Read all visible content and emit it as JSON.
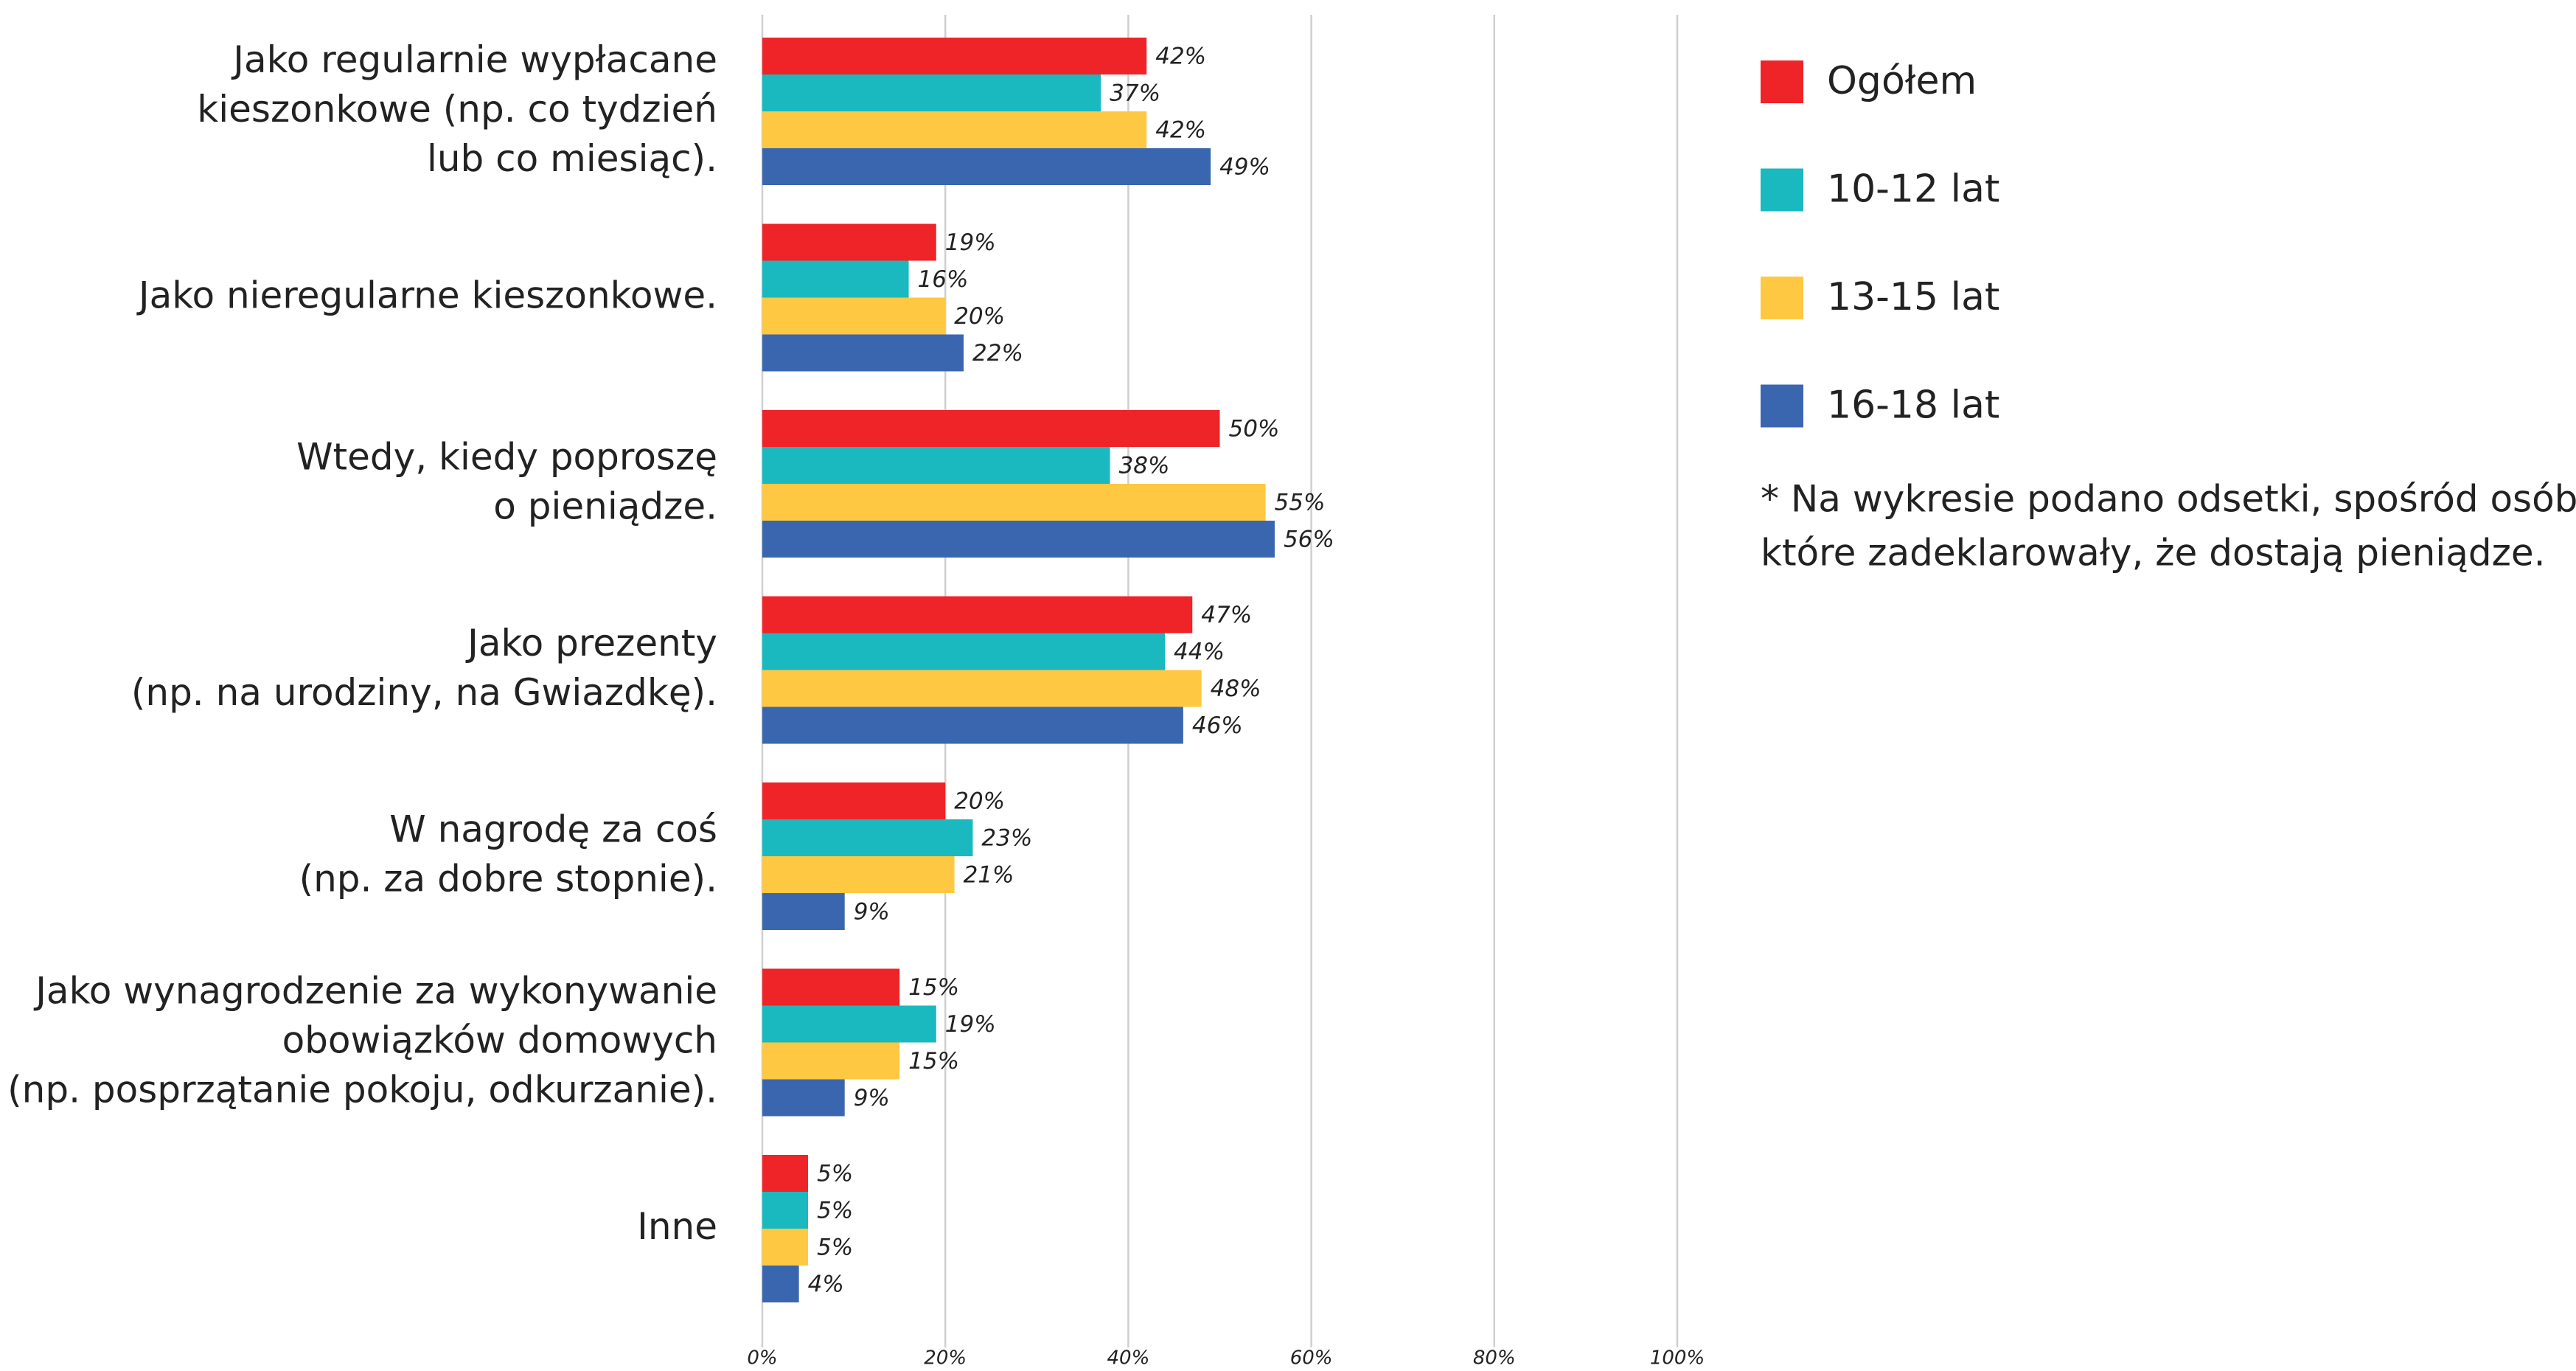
{
  "chart_data": {
    "type": "hbar",
    "categories": [
      [
        "Jako regularnie wypłacane",
        "kieszonkowe (np. co tydzień",
        "lub co miesiąc)."
      ],
      [
        "Jako nieregularne kieszonkowe."
      ],
      [
        "Wtedy, kiedy poproszę",
        "o pieniądze."
      ],
      [
        "Jako prezenty",
        "(np. na urodziny, na Gwiazdkę)."
      ],
      [
        "W nagrodę za coś",
        "(np. za dobre stopnie)."
      ],
      [
        "Jako wynagrodzenie za wykonywanie",
        "obowiązków domowych",
        "(np. posprzątanie pokoju, odkurzanie)."
      ],
      [
        "Inne"
      ]
    ],
    "series": [
      {
        "name": "Ogółem",
        "color": "#ee2428",
        "values": [
          42,
          19,
          50,
          47,
          20,
          15,
          5
        ],
        "value_labels": [
          "42%",
          "19%",
          "50%",
          "47%",
          "20%",
          "15%",
          "5%"
        ]
      },
      {
        "name": "10-12 lat",
        "color": "#19b9bf",
        "values": [
          37,
          16,
          38,
          44,
          23,
          19,
          5
        ],
        "value_labels": [
          "37%",
          "16%",
          "38%",
          "44%",
          "23%",
          "19%",
          "5%"
        ]
      },
      {
        "name": "13-15 lat",
        "color": "#fec843",
        "values": [
          42,
          20,
          55,
          48,
          21,
          15,
          5
        ],
        "value_labels": [
          "42%",
          "20%",
          "55%",
          "48%",
          "21%",
          "15%",
          "5%"
        ]
      },
      {
        "name": "16-18 lat",
        "color": "#3a66b0",
        "values": [
          49,
          22,
          56,
          46,
          9,
          9,
          4
        ],
        "value_labels": [
          "49%",
          "22%",
          "56%",
          "46%",
          "9%",
          "9%",
          "4%"
        ]
      }
    ],
    "xlim": [
      0,
      100
    ],
    "xticks": [
      {
        "value": 0,
        "label": "0%"
      },
      {
        "value": 20,
        "label": "20%"
      },
      {
        "value": 40,
        "label": "40%"
      },
      {
        "value": 60,
        "label": "60%"
      },
      {
        "value": 80,
        "label": "80%"
      },
      {
        "value": 100,
        "label": "100%"
      }
    ],
    "grid": true,
    "note": [
      "* Na wykresie podano odsetki, spośród osób,",
      "które zadeklarowały, że dostają pieniądze."
    ]
  }
}
